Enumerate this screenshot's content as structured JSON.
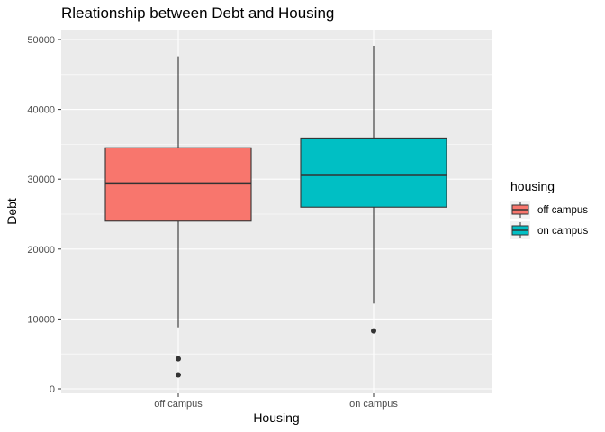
{
  "chart_data": {
    "type": "boxplot",
    "title": "Rleationship between Debt and Housing",
    "xlabel": "Housing",
    "ylabel": "Debt",
    "ylim": [
      0,
      50000
    ],
    "y_ticks": [
      0,
      10000,
      20000,
      30000,
      40000,
      50000
    ],
    "y_tick_labels": [
      "0",
      "10000",
      "20000",
      "30000",
      "40000",
      "50000"
    ],
    "categories": [
      "off campus",
      "on campus"
    ],
    "boxes": [
      {
        "category": "off campus",
        "whisker_low": 8800,
        "q1": 24000,
        "median": 29400,
        "q3": 34500,
        "whisker_high": 47600,
        "outliers": [
          4300,
          2000
        ],
        "color": "#F8766D"
      },
      {
        "category": "on campus",
        "whisker_low": 12200,
        "q1": 26000,
        "median": 30600,
        "q3": 35900,
        "whisker_high": 49100,
        "outliers": [
          8300
        ],
        "color": "#00BFC4"
      }
    ],
    "grid": true,
    "legend": {
      "title": "housing",
      "position": "right",
      "items": [
        {
          "label": "off campus",
          "color": "#F8766D"
        },
        {
          "label": "on campus",
          "color": "#00BFC4"
        }
      ]
    },
    "colors": {
      "panel_background": "#EBEBEB",
      "grid_line": "#FFFFFF",
      "box_outline": "#333333"
    }
  }
}
